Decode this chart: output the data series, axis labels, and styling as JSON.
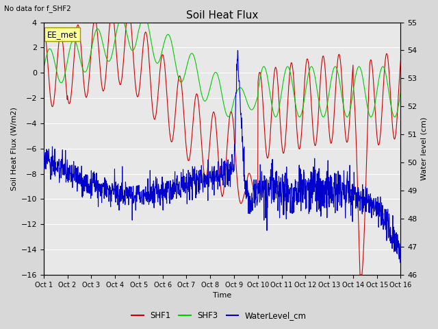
{
  "title": "Soil Heat Flux",
  "title_note": "No data for f_SHF2",
  "xlabel": "Time",
  "ylabel_left": "Soil Heat Flux (W/m2)",
  "ylabel_right": "Water level (cm)",
  "ylim_left": [
    -16,
    4
  ],
  "ylim_right": [
    46.0,
    55.0
  ],
  "yticks_left": [
    -16,
    -14,
    -12,
    -10,
    -8,
    -6,
    -4,
    -2,
    0,
    2,
    4
  ],
  "yticks_right": [
    46.0,
    47.0,
    48.0,
    49.0,
    50.0,
    51.0,
    52.0,
    53.0,
    54.0,
    55.0
  ],
  "xtick_labels": [
    "Oct 1",
    "Oct 2",
    "Oct 3",
    "Oct 4",
    "Oct 5",
    "Oct 6",
    "Oct 7",
    "Oct 8",
    "Oct 9",
    "Oct 10",
    "Oct 11",
    "Oct 12",
    "Oct 13",
    "Oct 14",
    "Oct 15",
    "Oct 16"
  ],
  "n_days": 15,
  "shf1_color": "#cc0000",
  "shf3_color": "#00cc00",
  "water_color": "#0000cc",
  "background_color": "#d8d8d8",
  "plot_bg_color": "#e8e8e8",
  "grid_color": "#ffffff",
  "annotation_text": "EE_met",
  "annotation_box_color": "#ffff99",
  "annotation_box_edge": "#999900",
  "figsize": [
    6.4,
    4.8
  ],
  "dpi": 100
}
